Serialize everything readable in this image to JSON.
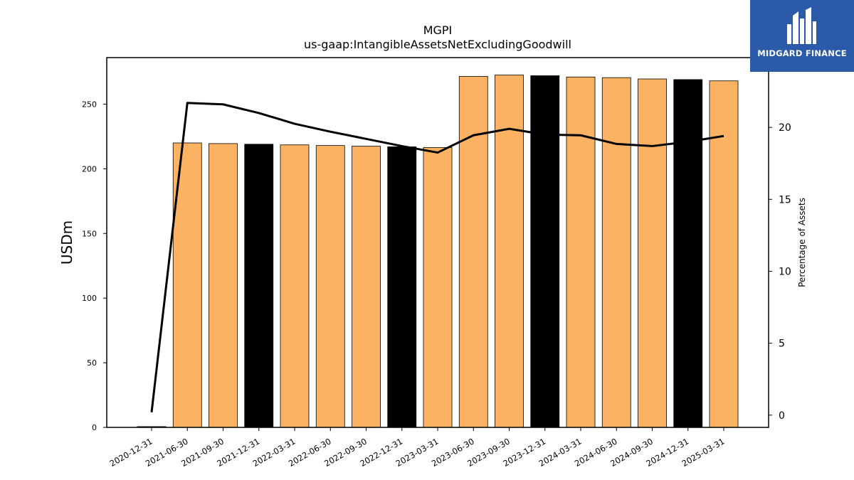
{
  "chart_data": {
    "type": "bar",
    "title": "MGPI",
    "subtitle": "us-gaap:IntangibleAssetsNetExcludingGoodwill",
    "ylabel": "USDm",
    "y2label": "Percentage of Assets",
    "ylim": [
      0,
      286
    ],
    "y2lim": [
      -0.85,
      24.85
    ],
    "yticks": [
      0,
      50,
      100,
      150,
      200,
      250
    ],
    "y2ticks": [
      0,
      5,
      10,
      15,
      20
    ],
    "categories": [
      "2020-12-31",
      "2021-06-30",
      "2021-09-30",
      "2021-12-31",
      "2022-03-31",
      "2022-06-30",
      "2022-09-30",
      "2022-12-31",
      "2023-03-31",
      "2023-06-30",
      "2023-09-30",
      "2023-12-31",
      "2024-03-31",
      "2024-06-30",
      "2024-09-30",
      "2024-12-31",
      "2025-03-31"
    ],
    "series": [
      {
        "type": "bar",
        "axis": "left",
        "values": [
          0.6,
          220.0,
          219.5,
          219.0,
          218.5,
          218.0,
          217.5,
          217.0,
          216.5,
          271.5,
          272.5,
          272.0,
          271.0,
          270.5,
          269.5,
          269.0,
          268.0
        ],
        "colors": [
          "#000000",
          "#fbb363",
          "#fbb363",
          "#000000",
          "#fbb363",
          "#fbb363",
          "#fbb363",
          "#000000",
          "#fbb363",
          "#fbb363",
          "#fbb363",
          "#000000",
          "#fbb363",
          "#fbb363",
          "#fbb363",
          "#000000",
          "#fbb363"
        ]
      },
      {
        "type": "line",
        "axis": "right",
        "color": "#000000",
        "values": [
          0.2,
          21.7,
          21.6,
          21.0,
          20.25,
          19.7,
          19.2,
          18.7,
          18.25,
          19.45,
          19.9,
          19.5,
          19.45,
          18.85,
          18.7,
          19.0,
          19.4
        ]
      }
    ],
    "legend": "none",
    "grid": false
  },
  "brand": {
    "name": "MIDGARD FINANCE",
    "bg_color": "#2a5aa8"
  }
}
